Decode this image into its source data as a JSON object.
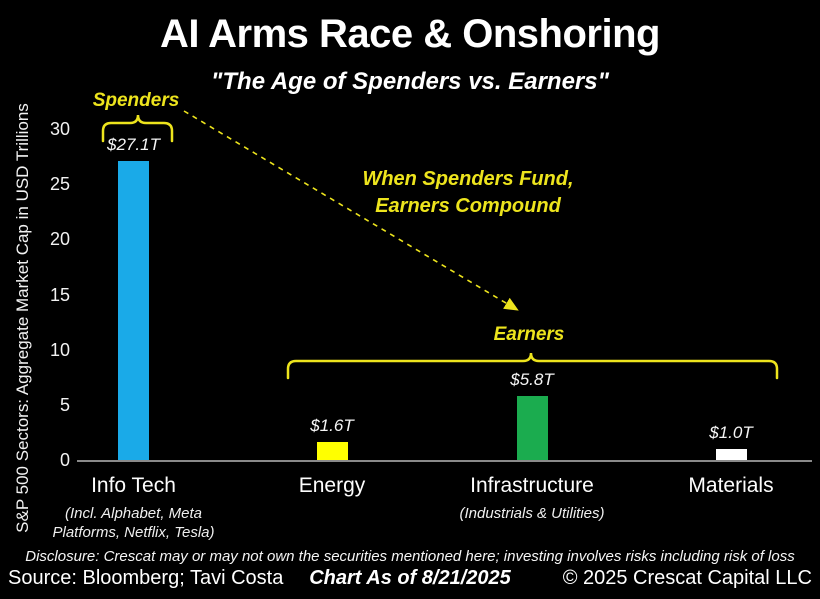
{
  "header": {
    "title": "AI Arms Race & Onshoring",
    "subtitle": "\"The Age of Spenders vs. Earners\""
  },
  "chart_data": {
    "type": "bar",
    "title": "AI Arms Race & Onshoring",
    "subtitle": "\"The Age of Spenders vs. Earners\"",
    "ylabel": "S&P 500 Sectors: Aggregate Market Cap in USD Trillions",
    "xlabel": "",
    "ylim": [
      0,
      30
    ],
    "yticks": [
      0,
      5,
      10,
      15,
      20,
      25,
      30
    ],
    "grid": false,
    "legend": false,
    "categories": [
      "Info Tech",
      "Energy",
      "Infrastructure",
      "Materials"
    ],
    "category_sublabels": [
      "(Incl. Alphabet, Meta Platforms, Netflix, Tesla)",
      "",
      "(Industrials & Utilities)",
      ""
    ],
    "values": [
      27.1,
      1.6,
      5.8,
      1.0
    ],
    "value_labels": [
      "$27.1T",
      "$1.6T",
      "$5.8T",
      "$1.0T"
    ],
    "bar_colors": [
      "#1AAAE8",
      "#FFFF00",
      "#1BAC4F",
      "#FFFFFF"
    ],
    "units": "USD Trillions"
  },
  "annotations": {
    "spenders_label": "Spenders",
    "earners_label": "Earners",
    "callout_line1": "When Spenders Fund,",
    "callout_line2": "Earners Compound",
    "accent_color": "#EDE41D"
  },
  "footer": {
    "disclosure": "Disclosure: Crescat may or may not own the securities mentioned here; investing involves risks including risk of loss",
    "source": "Source: Bloomberg; Tavi Costa",
    "as_of": "Chart As of 8/21/2025",
    "copyright": "© 2025 Crescat Capital LLC"
  }
}
